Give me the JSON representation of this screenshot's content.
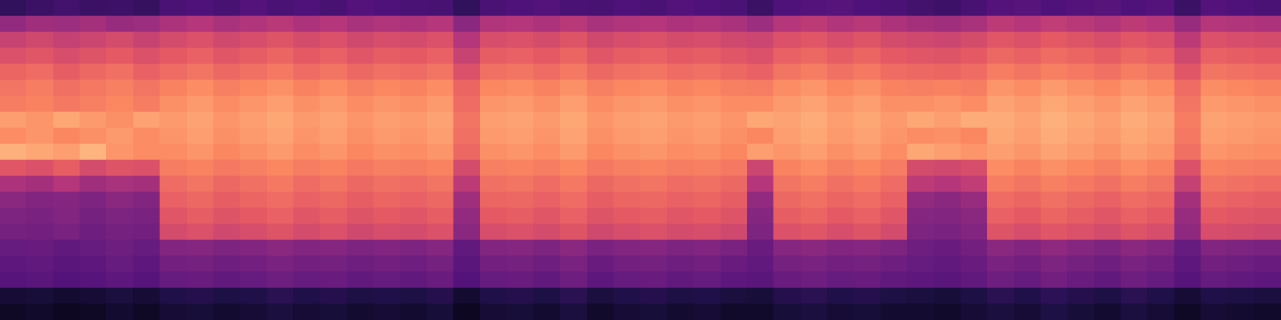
{
  "chart_data": {
    "type": "heatmap",
    "tick_labels": false,
    "grid": false,
    "clim": [
      0,
      100
    ],
    "cells": [
      [
        18,
        20,
        22,
        20,
        21,
        19,
        24,
        25,
        23,
        26,
        24,
        25,
        23,
        26,
        25,
        24,
        23,
        18,
        24,
        25,
        26,
        24,
        23,
        25,
        24,
        26,
        25,
        24,
        20,
        25,
        26,
        27,
        25,
        24,
        22,
        21,
        23,
        26,
        27,
        25,
        26,
        27,
        25,
        26,
        20,
        26,
        25,
        24
      ],
      [
        42,
        45,
        44,
        46,
        43,
        44,
        48,
        50,
        47,
        49,
        51,
        48,
        50,
        47,
        49,
        48,
        50,
        40,
        49,
        50,
        48,
        51,
        47,
        49,
        50,
        48,
        49,
        47,
        44,
        50,
        52,
        49,
        51,
        48,
        46,
        45,
        47,
        52,
        50,
        53,
        51,
        49,
        52,
        50,
        43,
        50,
        49,
        48
      ],
      [
        55,
        57,
        54,
        56,
        58,
        55,
        58,
        60,
        57,
        59,
        61,
        58,
        60,
        57,
        59,
        58,
        60,
        50,
        59,
        60,
        58,
        61,
        57,
        59,
        60,
        58,
        59,
        57,
        56,
        60,
        62,
        59,
        61,
        58,
        57,
        56,
        58,
        62,
        60,
        63,
        61,
        59,
        62,
        60,
        52,
        60,
        59,
        58
      ],
      [
        60,
        62,
        59,
        61,
        63,
        60,
        63,
        65,
        62,
        64,
        66,
        63,
        65,
        62,
        64,
        63,
        65,
        55,
        64,
        65,
        63,
        66,
        62,
        64,
        65,
        63,
        64,
        62,
        60,
        65,
        67,
        64,
        66,
        63,
        62,
        61,
        63,
        67,
        65,
        68,
        66,
        64,
        67,
        65,
        57,
        65,
        64,
        63
      ],
      [
        66,
        68,
        64,
        67,
        69,
        65,
        68,
        70,
        67,
        69,
        71,
        68,
        70,
        67,
        69,
        68,
        70,
        60,
        69,
        70,
        68,
        71,
        67,
        69,
        70,
        68,
        69,
        67,
        65,
        70,
        72,
        69,
        71,
        68,
        67,
        66,
        68,
        72,
        70,
        73,
        71,
        69,
        72,
        70,
        62,
        70,
        69,
        68
      ],
      [
        70,
        72,
        69,
        71,
        73,
        70,
        74,
        76,
        73,
        75,
        77,
        74,
        76,
        73,
        75,
        74,
        76,
        66,
        75,
        76,
        74,
        77,
        73,
        75,
        76,
        74,
        75,
        73,
        72,
        76,
        78,
        75,
        77,
        74,
        73,
        74,
        72,
        78,
        76,
        79,
        77,
        75,
        78,
        76,
        68,
        76,
        75,
        74
      ],
      [
        72,
        74,
        71,
        73,
        75,
        72,
        77,
        79,
        76,
        78,
        80,
        77,
        79,
        76,
        78,
        77,
        79,
        68,
        78,
        79,
        77,
        80,
        76,
        78,
        79,
        77,
        78,
        76,
        76,
        79,
        81,
        78,
        80,
        77,
        77,
        78,
        76,
        81,
        79,
        82,
        80,
        78,
        81,
        79,
        70,
        79,
        78,
        77
      ],
      [
        80,
        78,
        82,
        79,
        77,
        81,
        79,
        81,
        78,
        80,
        82,
        79,
        81,
        78,
        80,
        79,
        81,
        70,
        80,
        81,
        79,
        82,
        78,
        80,
        81,
        79,
        80,
        78,
        82,
        81,
        83,
        80,
        82,
        79,
        82,
        80,
        83,
        83,
        81,
        84,
        82,
        80,
        83,
        81,
        72,
        81,
        80,
        79
      ],
      [
        76,
        78,
        75,
        77,
        79,
        76,
        78,
        80,
        77,
        79,
        81,
        78,
        80,
        77,
        79,
        78,
        80,
        69,
        79,
        80,
        78,
        81,
        77,
        79,
        80,
        78,
        79,
        77,
        75,
        80,
        82,
        79,
        81,
        78,
        76,
        77,
        75,
        82,
        80,
        83,
        81,
        79,
        82,
        80,
        71,
        80,
        79,
        78
      ],
      [
        84,
        82,
        80,
        85,
        78,
        76,
        76,
        78,
        75,
        77,
        79,
        76,
        78,
        75,
        77,
        76,
        78,
        67,
        77,
        78,
        76,
        79,
        75,
        77,
        78,
        76,
        77,
        75,
        80,
        78,
        80,
        77,
        79,
        76,
        82,
        80,
        78,
        80,
        78,
        81,
        79,
        77,
        80,
        78,
        69,
        78,
        77,
        76
      ],
      [
        62,
        60,
        64,
        58,
        61,
        60,
        72,
        74,
        71,
        73,
        75,
        72,
        74,
        71,
        73,
        72,
        74,
        58,
        73,
        74,
        72,
        75,
        71,
        73,
        74,
        72,
        73,
        71,
        56,
        74,
        76,
        73,
        75,
        72,
        58,
        57,
        59,
        76,
        74,
        77,
        75,
        73,
        76,
        74,
        60,
        74,
        73,
        72
      ],
      [
        48,
        46,
        50,
        45,
        47,
        46,
        68,
        70,
        67,
        69,
        71,
        68,
        70,
        67,
        69,
        68,
        70,
        52,
        69,
        70,
        68,
        71,
        67,
        69,
        70,
        68,
        69,
        67,
        50,
        70,
        72,
        69,
        71,
        68,
        52,
        50,
        53,
        72,
        70,
        73,
        71,
        69,
        72,
        70,
        54,
        70,
        69,
        68
      ],
      [
        40,
        38,
        39,
        37,
        40,
        38,
        65,
        67,
        64,
        66,
        68,
        65,
        67,
        64,
        66,
        65,
        67,
        45,
        66,
        67,
        65,
        68,
        64,
        66,
        67,
        65,
        66,
        64,
        42,
        67,
        69,
        66,
        68,
        65,
        42,
        40,
        43,
        68,
        66,
        69,
        67,
        65,
        68,
        66,
        46,
        66,
        65,
        64
      ],
      [
        37,
        36,
        38,
        35,
        37,
        36,
        62,
        64,
        61,
        63,
        65,
        62,
        64,
        61,
        63,
        62,
        64,
        42,
        63,
        64,
        62,
        65,
        61,
        63,
        64,
        62,
        63,
        61,
        39,
        64,
        66,
        63,
        65,
        62,
        39,
        38,
        40,
        65,
        63,
        66,
        64,
        62,
        65,
        63,
        43,
        63,
        62,
        61
      ],
      [
        35,
        34,
        36,
        33,
        35,
        34,
        58,
        60,
        57,
        59,
        61,
        58,
        60,
        57,
        59,
        58,
        60,
        40,
        59,
        60,
        58,
        61,
        57,
        59,
        60,
        58,
        59,
        57,
        37,
        60,
        62,
        59,
        61,
        58,
        37,
        36,
        38,
        61,
        59,
        62,
        60,
        58,
        61,
        59,
        41,
        59,
        58,
        57
      ],
      [
        31,
        32,
        30,
        31,
        33,
        31,
        38,
        39,
        37,
        38,
        40,
        38,
        39,
        37,
        38,
        37,
        39,
        30,
        38,
        39,
        37,
        40,
        36,
        38,
        39,
        37,
        38,
        36,
        32,
        39,
        40,
        38,
        39,
        37,
        33,
        32,
        34,
        40,
        38,
        41,
        39,
        37,
        40,
        38,
        31,
        38,
        37,
        36
      ],
      [
        29,
        30,
        28,
        29,
        31,
        29,
        34,
        35,
        33,
        34,
        36,
        34,
        35,
        33,
        34,
        33,
        35,
        28,
        34,
        35,
        33,
        36,
        32,
        34,
        35,
        33,
        34,
        32,
        30,
        35,
        36,
        34,
        35,
        33,
        31,
        30,
        32,
        36,
        34,
        37,
        35,
        33,
        36,
        34,
        29,
        34,
        33,
        32
      ],
      [
        27,
        28,
        26,
        27,
        29,
        27,
        31,
        32,
        30,
        31,
        33,
        31,
        32,
        30,
        31,
        30,
        32,
        26,
        31,
        32,
        30,
        33,
        29,
        31,
        32,
        30,
        31,
        29,
        28,
        32,
        33,
        31,
        32,
        30,
        29,
        28,
        30,
        33,
        31,
        34,
        32,
        30,
        33,
        31,
        27,
        31,
        30,
        29
      ],
      [
        10,
        11,
        9,
        10,
        12,
        10,
        14,
        15,
        13,
        14,
        16,
        14,
        15,
        13,
        14,
        13,
        15,
        9,
        14,
        15,
        13,
        16,
        12,
        14,
        15,
        13,
        14,
        12,
        11,
        15,
        16,
        14,
        15,
        13,
        12,
        11,
        13,
        16,
        14,
        17,
        15,
        13,
        16,
        14,
        10,
        14,
        13,
        12
      ],
      [
        7,
        8,
        6,
        7,
        9,
        7,
        10,
        11,
        9,
        10,
        12,
        10,
        11,
        9,
        10,
        9,
        11,
        6,
        10,
        11,
        9,
        12,
        8,
        10,
        11,
        9,
        10,
        8,
        8,
        11,
        12,
        10,
        11,
        9,
        9,
        8,
        10,
        12,
        10,
        13,
        11,
        9,
        12,
        10,
        7,
        10,
        9,
        8
      ]
    ]
  }
}
